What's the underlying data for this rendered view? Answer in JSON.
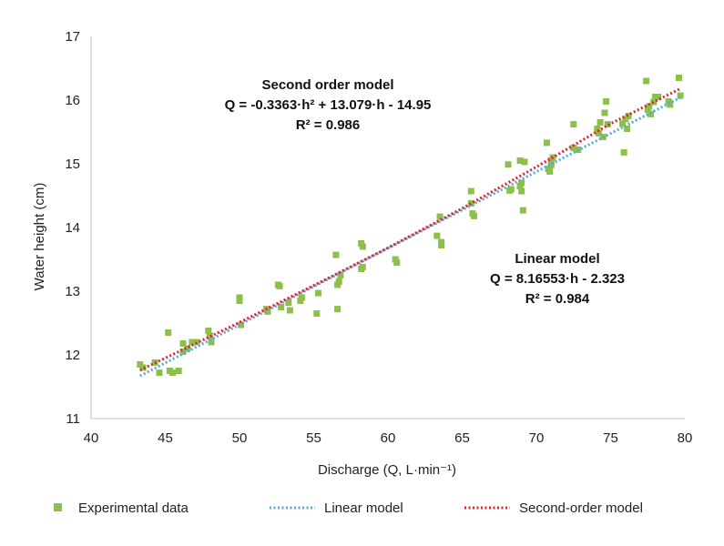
{
  "chart_data": {
    "type": "scatter",
    "title": "",
    "xlabel": "Discharge (Q, L·min⁻¹)",
    "ylabel": "Water height (cm)",
    "xlim": [
      40,
      80
    ],
    "ylim": [
      11,
      17
    ],
    "xticks": [
      40,
      45,
      50,
      55,
      60,
      65,
      70,
      75,
      80
    ],
    "yticks": [
      11,
      12,
      13,
      14,
      15,
      16,
      17
    ],
    "grid": false,
    "legend_position": "bottom",
    "series": [
      {
        "name": "Experimental data",
        "kind": "points",
        "color": "#8dc04b",
        "points": [
          [
            43.3,
            11.85
          ],
          [
            43.5,
            11.8
          ],
          [
            44.3,
            11.88
          ],
          [
            44.6,
            11.72
          ],
          [
            45.2,
            12.35
          ],
          [
            45.3,
            11.75
          ],
          [
            45.5,
            11.72
          ],
          [
            45.9,
            11.75
          ],
          [
            46.2,
            12.18
          ],
          [
            46.2,
            12.05
          ],
          [
            46.5,
            12.1
          ],
          [
            46.8,
            12.2
          ],
          [
            47.1,
            12.2
          ],
          [
            47.9,
            12.38
          ],
          [
            48.0,
            12.3
          ],
          [
            48.1,
            12.2
          ],
          [
            50.0,
            12.9
          ],
          [
            50.0,
            12.85
          ],
          [
            50.1,
            12.47
          ],
          [
            51.8,
            12.72
          ],
          [
            51.9,
            12.68
          ],
          [
            52.6,
            13.1
          ],
          [
            52.7,
            13.08
          ],
          [
            52.8,
            12.75
          ],
          [
            53.3,
            12.82
          ],
          [
            53.4,
            12.7
          ],
          [
            54.1,
            12.85
          ],
          [
            54.2,
            12.9
          ],
          [
            55.2,
            12.65
          ],
          [
            55.3,
            12.97
          ],
          [
            56.5,
            13.57
          ],
          [
            56.6,
            13.1
          ],
          [
            56.7,
            13.15
          ],
          [
            56.8,
            13.25
          ],
          [
            56.6,
            12.72
          ],
          [
            58.2,
            13.75
          ],
          [
            58.3,
            13.7
          ],
          [
            58.2,
            13.35
          ],
          [
            58.3,
            13.38
          ],
          [
            60.5,
            13.5
          ],
          [
            60.6,
            13.45
          ],
          [
            63.3,
            13.87
          ],
          [
            63.5,
            14.17
          ],
          [
            63.6,
            13.77
          ],
          [
            63.6,
            13.72
          ],
          [
            65.6,
            14.57
          ],
          [
            65.6,
            14.38
          ],
          [
            65.7,
            14.22
          ],
          [
            65.8,
            14.18
          ],
          [
            68.1,
            14.99
          ],
          [
            68.2,
            14.58
          ],
          [
            68.3,
            14.6
          ],
          [
            68.9,
            15.05
          ],
          [
            68.9,
            14.65
          ],
          [
            69.0,
            14.7
          ],
          [
            69.0,
            14.57
          ],
          [
            69.2,
            15.03
          ],
          [
            69.1,
            14.27
          ],
          [
            70.7,
            15.33
          ],
          [
            70.8,
            14.92
          ],
          [
            70.9,
            14.88
          ],
          [
            71.0,
            15.05
          ],
          [
            71.0,
            14.98
          ],
          [
            71.1,
            15.1
          ],
          [
            72.5,
            15.62
          ],
          [
            72.5,
            15.25
          ],
          [
            72.8,
            15.22
          ],
          [
            74.1,
            15.55
          ],
          [
            74.2,
            15.48
          ],
          [
            74.3,
            15.65
          ],
          [
            74.5,
            15.42
          ],
          [
            74.6,
            15.8
          ],
          [
            74.7,
            15.98
          ],
          [
            74.8,
            15.62
          ],
          [
            75.8,
            15.63
          ],
          [
            75.9,
            15.18
          ],
          [
            76.0,
            15.7
          ],
          [
            76.1,
            15.55
          ],
          [
            76.2,
            15.75
          ],
          [
            77.4,
            16.3
          ],
          [
            77.5,
            15.85
          ],
          [
            77.6,
            15.9
          ],
          [
            77.7,
            15.78
          ],
          [
            77.9,
            15.97
          ],
          [
            78.0,
            16.05
          ],
          [
            78.2,
            16.05
          ],
          [
            78.9,
            15.98
          ],
          [
            79.0,
            15.93
          ],
          [
            79.6,
            16.35
          ],
          [
            79.7,
            16.07
          ]
        ]
      },
      {
        "name": "Linear model",
        "kind": "dotted-line",
        "color": "#5aaad8",
        "x": [
          43.3,
          79.7
        ],
        "y": [
          11.67,
          16.04
        ]
      },
      {
        "name": "Second-order model",
        "kind": "dotted-line",
        "color": "#e8202a",
        "x": [
          43.3,
          50,
          55,
          60,
          65,
          70,
          75,
          79.7
        ],
        "y": [
          11.76,
          12.51,
          13.09,
          13.68,
          14.3,
          14.95,
          15.63,
          16.18
        ]
      }
    ],
    "annotations": [
      {
        "id": "second-order",
        "lines": [
          "Second order model",
          "Q = -0.3363·h² + 13.079·h - 14.95",
          "R² = 0.986"
        ]
      },
      {
        "id": "linear",
        "lines": [
          "Linear model",
          "Q = 8.16553·h - 2.323",
          "R² = 0.984"
        ]
      }
    ]
  }
}
